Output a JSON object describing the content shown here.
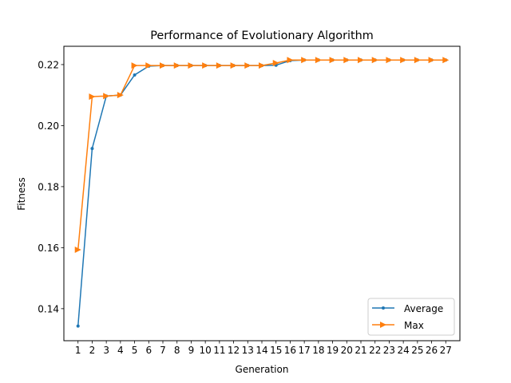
{
  "chart_data": {
    "type": "line",
    "title": "Performance of Evolutionary Algorithm",
    "xlabel": "Generation",
    "ylabel": "Fitness",
    "x": [
      1,
      2,
      3,
      4,
      5,
      6,
      7,
      8,
      9,
      10,
      11,
      12,
      13,
      14,
      15,
      16,
      17,
      18,
      19,
      20,
      21,
      22,
      23,
      24,
      25,
      26,
      27
    ],
    "xlim": [
      0,
      28
    ],
    "ylim": [
      0.1295,
      0.226
    ],
    "yticks": [
      0.14,
      0.16,
      0.18,
      0.2,
      0.22
    ],
    "ytick_labels": [
      "0.14",
      "0.16",
      "0.18",
      "0.20",
      "0.22"
    ],
    "grid": false,
    "legend_position": "lower-right",
    "series": [
      {
        "name": "Average",
        "color": "#1f77b4",
        "marker": "circle",
        "values": [
          0.1343,
          0.1925,
          0.2097,
          0.21,
          0.2166,
          0.2195,
          0.2197,
          0.2197,
          0.2197,
          0.2197,
          0.2197,
          0.2197,
          0.2197,
          0.2197,
          0.2198,
          0.2213,
          0.2215,
          0.2215,
          0.2215,
          0.2215,
          0.2215,
          0.2215,
          0.2215,
          0.2215,
          0.2215,
          0.2215,
          0.2215
        ]
      },
      {
        "name": "Max",
        "color": "#ff7f0e",
        "marker": "triangle-right",
        "values": [
          0.1593,
          0.2095,
          0.2097,
          0.21,
          0.2197,
          0.2197,
          0.2197,
          0.2197,
          0.2197,
          0.2197,
          0.2197,
          0.2197,
          0.2197,
          0.2197,
          0.2205,
          0.2215,
          0.2215,
          0.2215,
          0.2215,
          0.2215,
          0.2215,
          0.2215,
          0.2215,
          0.2215,
          0.2215,
          0.2215,
          0.2215
        ]
      }
    ]
  }
}
